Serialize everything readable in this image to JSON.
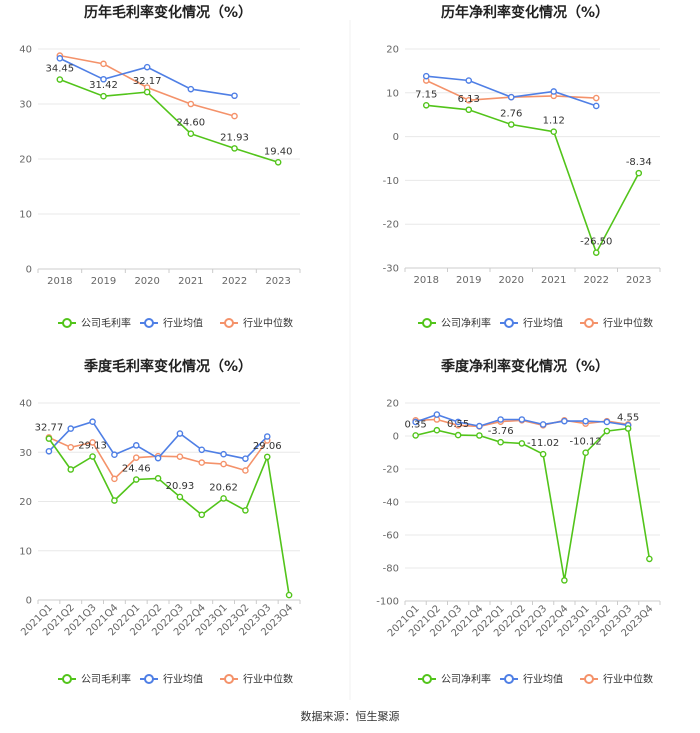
{
  "source": "数据来源：恒生聚源",
  "colors": {
    "company": "#52c41a",
    "avg": "#4f7fe5",
    "median": "#f4926a",
    "grid": "#e8e8e8",
    "axis": "#cccccc"
  },
  "chart_data": [
    {
      "type": "line",
      "title": "历年毛利率变化情况（%）",
      "categories": [
        "2018",
        "2019",
        "2020",
        "2021",
        "2022",
        "2023"
      ],
      "ylim": [
        0,
        40
      ],
      "yticks": [
        0,
        10,
        20,
        30,
        40
      ],
      "series": [
        {
          "name": "公司毛利率",
          "key": "company",
          "values": [
            34.45,
            31.42,
            32.17,
            24.6,
            21.93,
            19.4
          ],
          "labels": [
            "34.45",
            "31.42",
            "32.17",
            "24.60",
            "21.93",
            "19.40"
          ]
        },
        {
          "name": "行业均值",
          "key": "avg",
          "values": [
            38.3,
            34.5,
            36.7,
            32.7,
            31.5,
            null
          ]
        },
        {
          "name": "行业中位数",
          "key": "median",
          "values": [
            38.8,
            37.3,
            33.0,
            30.0,
            27.8,
            null
          ]
        }
      ]
    },
    {
      "type": "line",
      "title": "历年净利率变化情况（%）",
      "categories": [
        "2018",
        "2019",
        "2020",
        "2021",
        "2022",
        "2023"
      ],
      "ylim": [
        -30,
        20
      ],
      "yticks": [
        -30,
        -20,
        -10,
        0,
        10,
        20
      ],
      "series": [
        {
          "name": "公司净利率",
          "key": "company",
          "values": [
            7.15,
            6.13,
            2.76,
            1.12,
            -26.5,
            -8.34
          ],
          "labels": [
            "7.15",
            "6.13",
            "2.76",
            "1.12",
            "-26.50",
            "-8.34"
          ]
        },
        {
          "name": "行业均值",
          "key": "avg",
          "values": [
            13.8,
            12.8,
            9.0,
            10.3,
            7.0,
            null
          ]
        },
        {
          "name": "行业中位数",
          "key": "median",
          "values": [
            12.8,
            8.3,
            9.0,
            9.3,
            8.8,
            null
          ]
        }
      ]
    },
    {
      "type": "line",
      "title": "季度毛利率变化情况（%）",
      "categories": [
        "2021Q1",
        "2021Q2",
        "2021Q3",
        "2021Q4",
        "2022Q1",
        "2022Q2",
        "2022Q3",
        "2022Q4",
        "2023Q1",
        "2023Q2",
        "2023Q3",
        "2023Q4"
      ],
      "ylim": [
        0,
        40
      ],
      "yticks": [
        0,
        10,
        20,
        30,
        40
      ],
      "series": [
        {
          "name": "公司毛利率",
          "key": "company",
          "values": [
            32.77,
            26.5,
            29.13,
            20.2,
            24.46,
            24.7,
            20.93,
            17.3,
            20.62,
            18.2,
            29.06,
            1.0
          ],
          "labels": [
            "32.77",
            "",
            "29.13",
            "",
            "24.46",
            "",
            "20.93",
            "",
            "20.62",
            "",
            "29.06",
            ""
          ]
        },
        {
          "name": "行业均值",
          "key": "avg",
          "values": [
            30.2,
            34.8,
            36.2,
            29.5,
            31.4,
            28.8,
            33.8,
            30.5,
            29.6,
            28.7,
            33.2,
            null
          ]
        },
        {
          "name": "行业中位数",
          "key": "median",
          "values": [
            33.0,
            31.0,
            32.0,
            24.6,
            28.9,
            29.2,
            29.1,
            27.9,
            27.6,
            26.3,
            32.4,
            null
          ]
        }
      ]
    },
    {
      "type": "line",
      "title": "季度净利率变化情况（%）",
      "categories": [
        "2021Q1",
        "2021Q2",
        "2021Q3",
        "2021Q4",
        "2022Q1",
        "2022Q2",
        "2022Q3",
        "2022Q4",
        "2023Q1",
        "2023Q2",
        "2023Q3",
        "2023Q4"
      ],
      "ylim": [
        -100,
        20
      ],
      "yticks": [
        -100,
        -80,
        -60,
        -40,
        -20,
        0,
        20
      ],
      "series": [
        {
          "name": "公司净利率",
          "key": "company",
          "values": [
            0.35,
            3.5,
            0.55,
            0.3,
            -3.76,
            -4.5,
            -11.02,
            -87.5,
            -10.12,
            3.0,
            4.55,
            -74.5
          ],
          "labels": [
            "0.35",
            "",
            "0.55",
            "",
            "-3.76",
            "",
            "-11.02",
            "",
            "-10.12",
            "",
            "4.55",
            ""
          ]
        },
        {
          "name": "行业均值",
          "key": "avg",
          "values": [
            8.5,
            13.0,
            8.5,
            6.0,
            10.0,
            10.0,
            7.0,
            9.0,
            9.0,
            8.5,
            6.5,
            null
          ]
        },
        {
          "name": "行业中位数",
          "key": "median",
          "values": [
            9.5,
            10.0,
            6.5,
            5.8,
            8.7,
            9.5,
            6.5,
            9.5,
            7.5,
            9.0,
            7.0,
            null
          ]
        }
      ]
    }
  ],
  "legends": [
    [
      "公司毛利率",
      "行业均值",
      "行业中位数"
    ],
    [
      "公司净利率",
      "行业均值",
      "行业中位数"
    ],
    [
      "公司毛利率",
      "行业均值",
      "行业中位数"
    ],
    [
      "公司净利率",
      "行业均值",
      "行业中位数"
    ]
  ]
}
